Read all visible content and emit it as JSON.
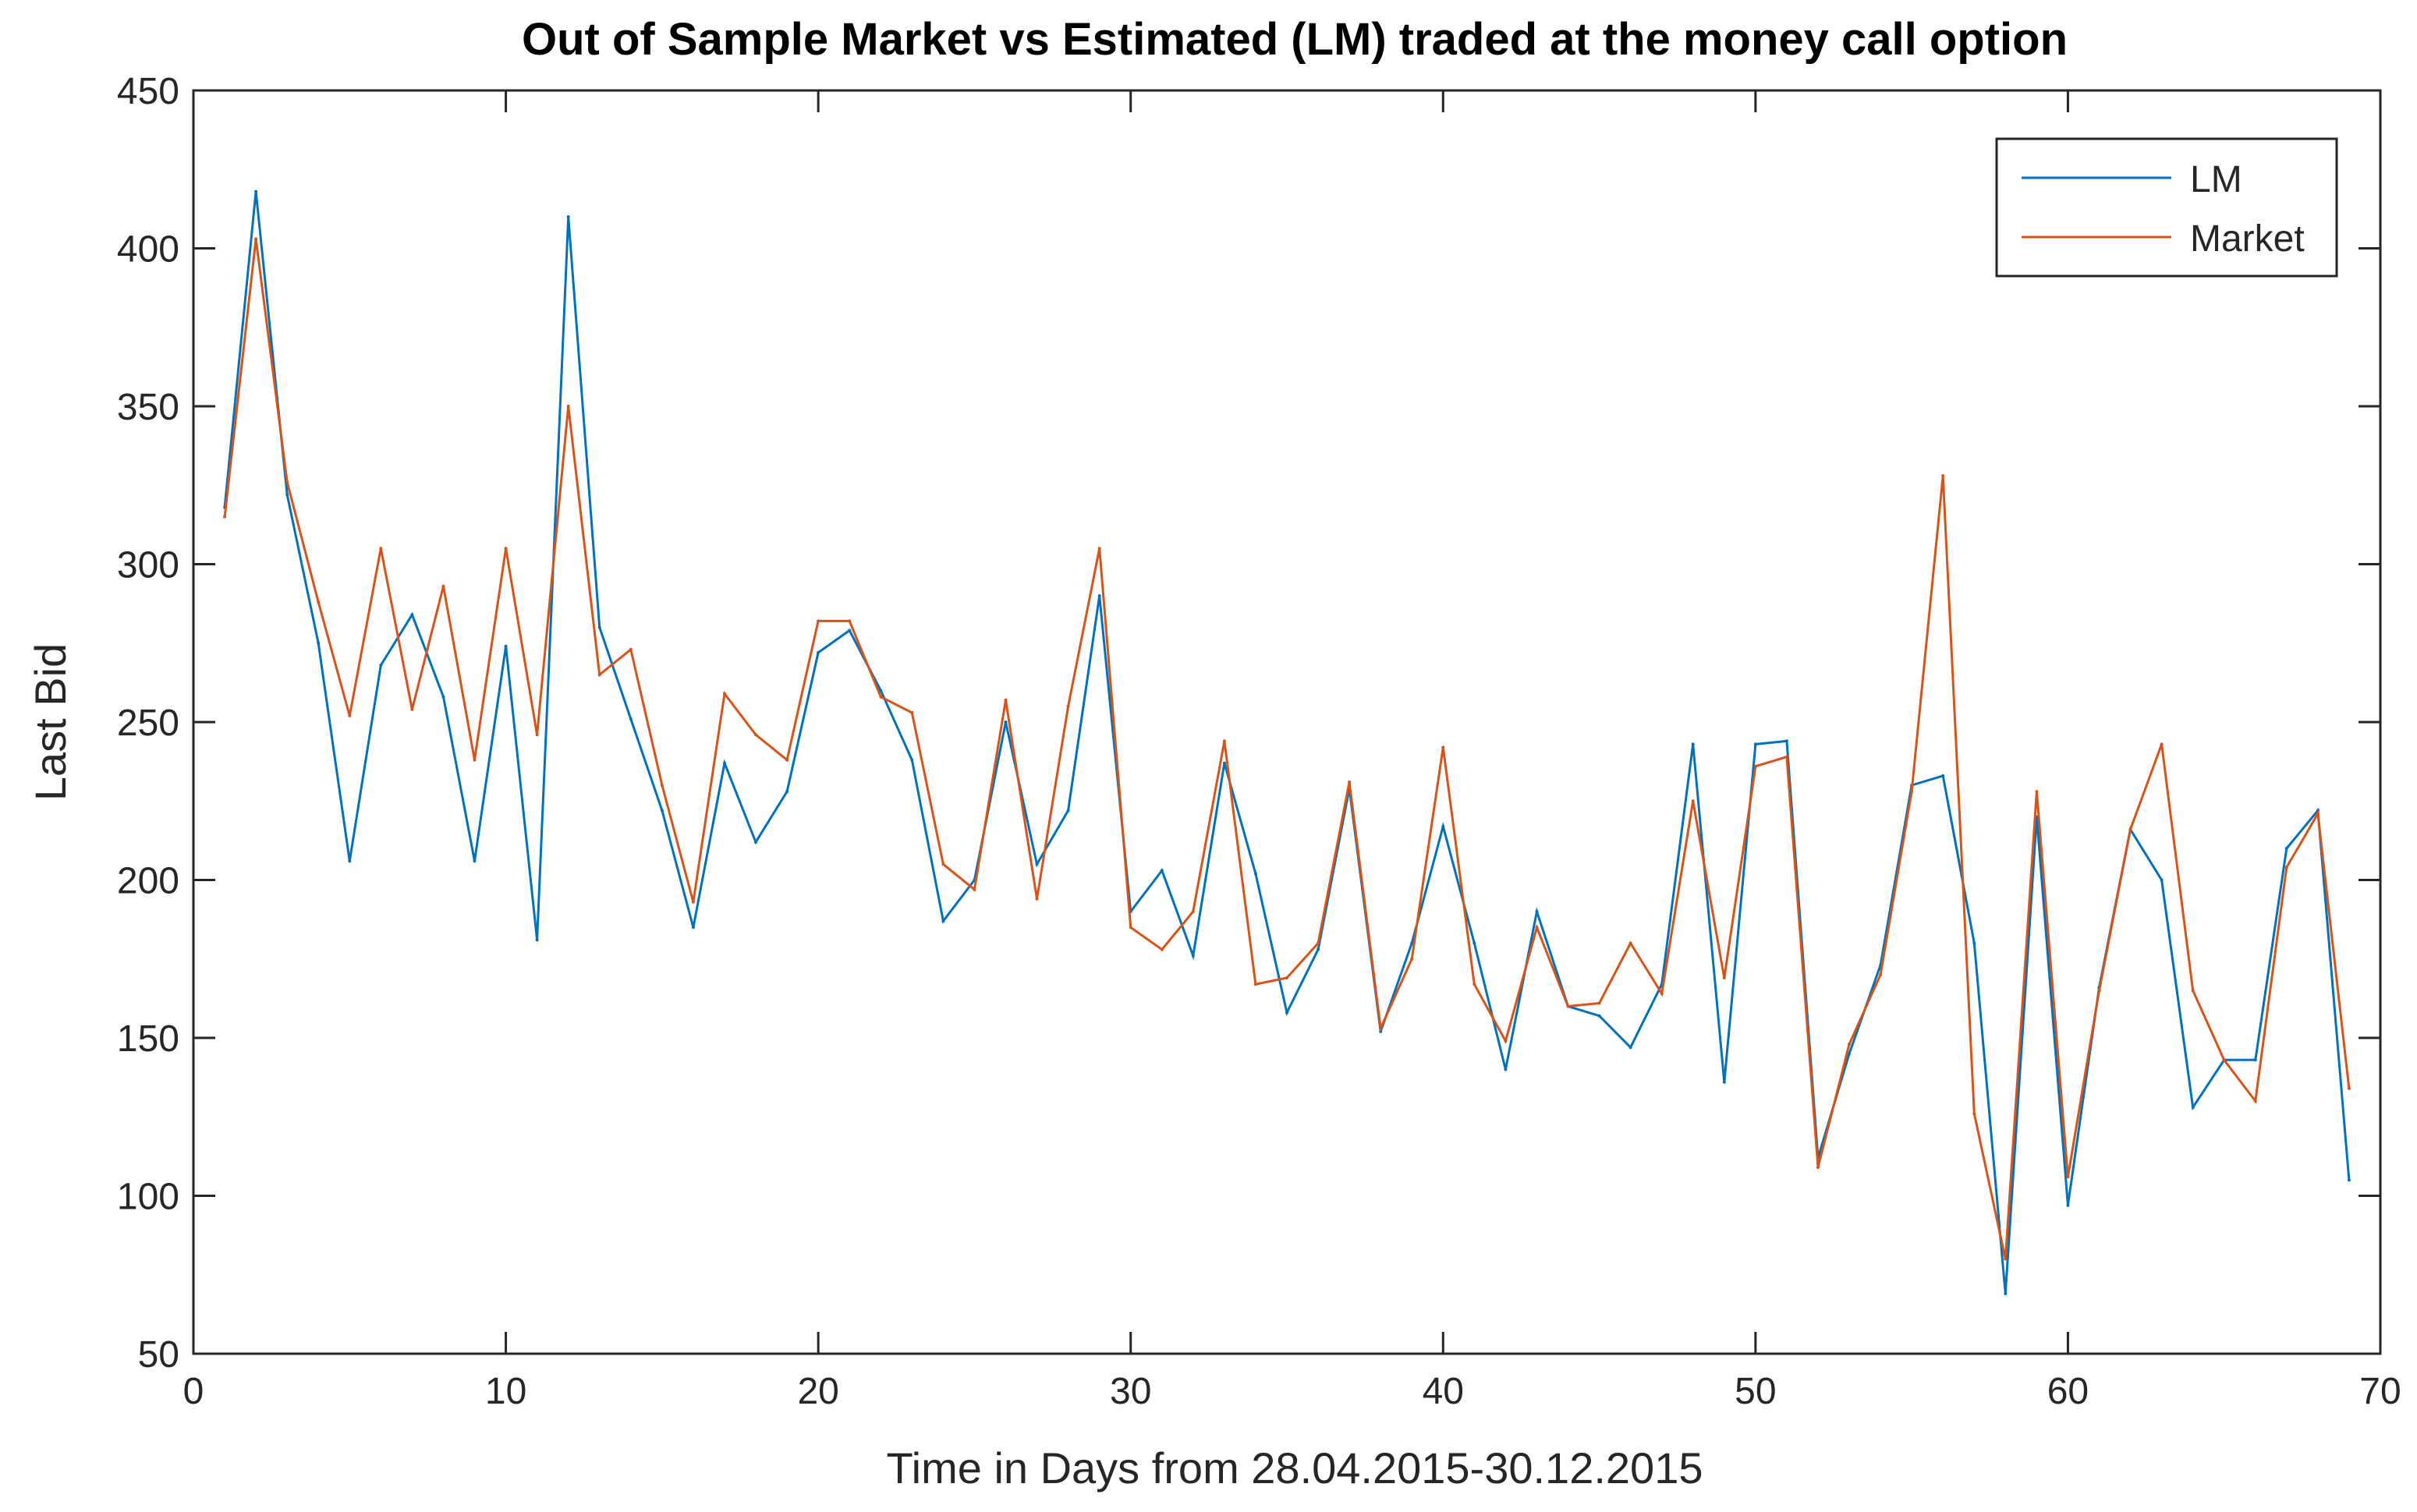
{
  "chart_data": {
    "type": "line",
    "title": "Out of Sample Market vs Estimated (LM) traded at the money call option",
    "xlabel": "Time in Days from 28.04.2015-30.12.2015",
    "ylabel": "Last Bid",
    "xlim": [
      0,
      70
    ],
    "ylim": [
      50,
      450
    ],
    "xticks": [
      0,
      10,
      20,
      30,
      40,
      50,
      60,
      70
    ],
    "yticks": [
      50,
      100,
      150,
      200,
      250,
      300,
      350,
      400,
      450
    ],
    "xtick_labels": [
      "0",
      "10",
      "20",
      "30",
      "40",
      "50",
      "60",
      "70"
    ],
    "ytick_labels": [
      "50",
      "100",
      "150",
      "200",
      "250",
      "300",
      "350",
      "400",
      "450"
    ],
    "grid": false,
    "legend_position": "top-right",
    "x": [
      1,
      2,
      3,
      4,
      5,
      6,
      7,
      8,
      9,
      10,
      11,
      12,
      13,
      14,
      15,
      16,
      17,
      18,
      19,
      20,
      21,
      22,
      23,
      24,
      25,
      26,
      27,
      28,
      29,
      30,
      31,
      32,
      33,
      34,
      35,
      36,
      37,
      38,
      39,
      40,
      41,
      42,
      43,
      44,
      45,
      46,
      47,
      48,
      49,
      50,
      51,
      52,
      53,
      54,
      55,
      56,
      57,
      58,
      59,
      60,
      61,
      62,
      63,
      64,
      65,
      66,
      67,
      68,
      69
    ],
    "series": [
      {
        "name": "LM",
        "color": "#0072BD",
        "values": [
          318,
          418,
          322,
          275,
          206,
          268,
          284,
          258,
          206,
          274,
          181,
          410,
          280,
          251,
          222,
          185,
          237,
          212,
          228,
          272,
          279,
          260,
          238,
          187,
          200,
          250,
          205,
          222,
          290,
          190,
          203,
          176,
          237,
          202,
          158,
          178,
          229,
          152,
          180,
          217,
          180,
          140,
          190,
          160,
          157,
          147,
          167,
          243,
          136,
          243,
          244,
          112,
          145,
          173,
          230,
          233,
          180,
          69,
          220,
          97,
          166,
          216,
          200,
          128,
          143,
          143,
          210,
          222,
          105
        ]
      },
      {
        "name": "Market",
        "color": "#D95319",
        "values": [
          315,
          403,
          326,
          288,
          252,
          305,
          254,
          293,
          238,
          305,
          246,
          350,
          265,
          273,
          230,
          193,
          259,
          246,
          238,
          282,
          282,
          258,
          253,
          205,
          197,
          257,
          194,
          255,
          305,
          185,
          178,
          190,
          244,
          167,
          169,
          180,
          231,
          153,
          175,
          242,
          167,
          149,
          185,
          160,
          161,
          180,
          164,
          225,
          169,
          236,
          239,
          109,
          148,
          170,
          228,
          328,
          126,
          80,
          228,
          106,
          165,
          216,
          243,
          165,
          143,
          130,
          204,
          221,
          134
        ]
      }
    ]
  }
}
